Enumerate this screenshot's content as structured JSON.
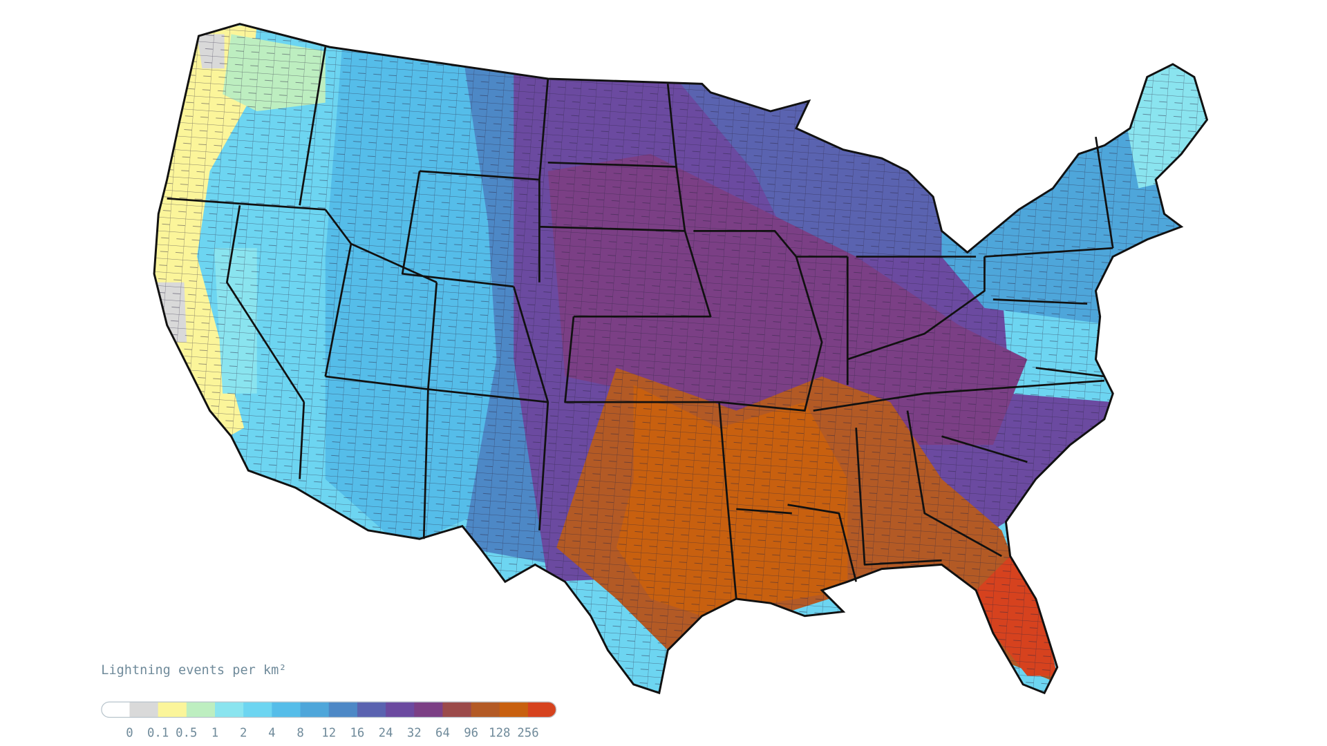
{
  "legend": {
    "title": "Lightning events per km²",
    "labels": [
      "0",
      "0.1",
      "0.5",
      "1",
      "2",
      "4",
      "8",
      "12",
      "16",
      "24",
      "32",
      "64",
      "96",
      "128",
      "256"
    ],
    "colors": [
      "#ffffff",
      "#d9d9d9",
      "#fbf59a",
      "#bdeec0",
      "#8ae4ef",
      "#6dd5f1",
      "#55bde9",
      "#4ea6da",
      "#4d88c6",
      "#5a63b0",
      "#6b4aa0",
      "#7b3f85",
      "#9b4a4a",
      "#b35a25",
      "#c8600f",
      "#d6421e"
    ]
  }
}
